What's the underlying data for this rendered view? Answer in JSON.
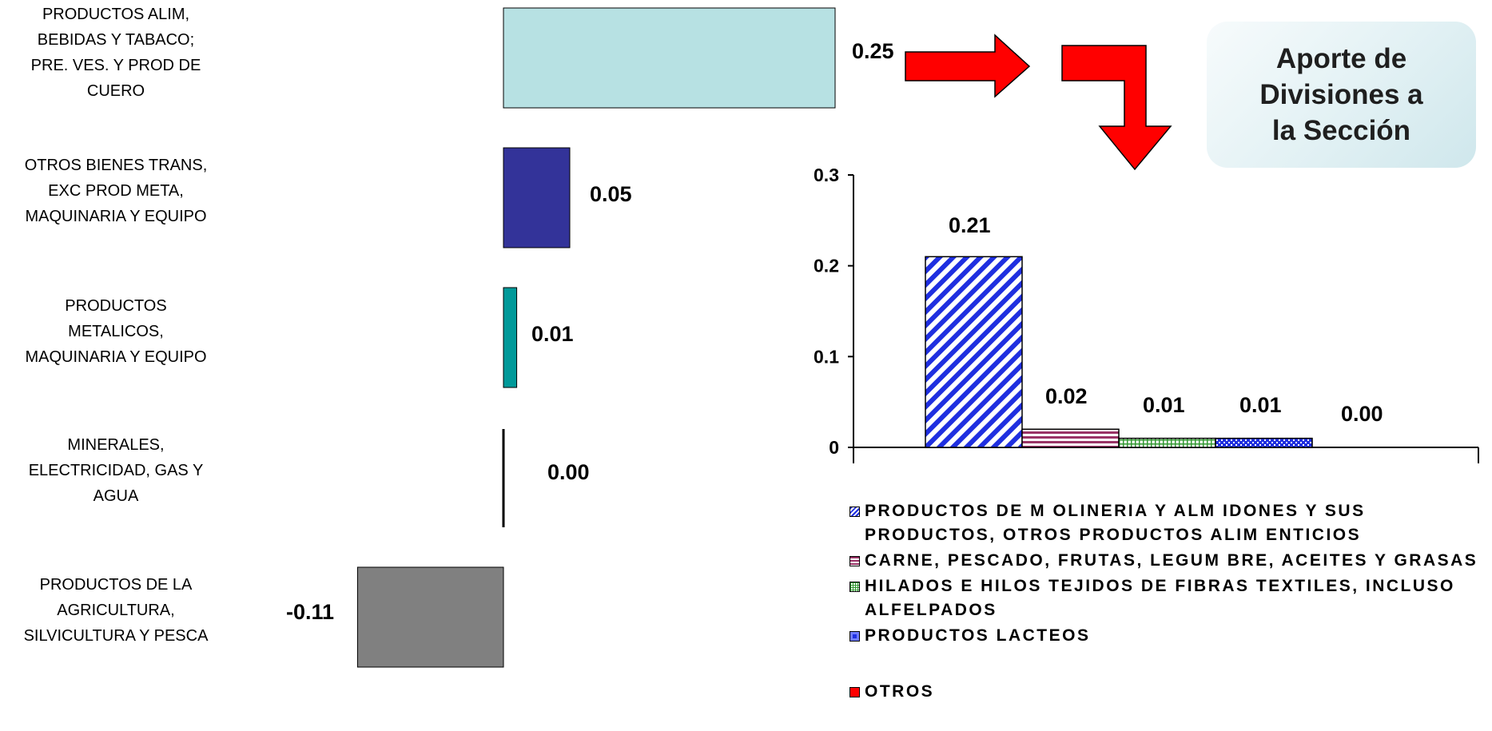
{
  "chart_data": [
    {
      "type": "bar",
      "orientation": "horizontal",
      "categories": [
        "PRODUCTOS  ALIM,\nBEBIDAS Y TABACO;\nPRE. VES. Y PROD DE\nCUERO",
        "OTROS BIENES TRANS,\nEXC PROD META,\nMAQUINARIA Y EQUIPO",
        "PRODUCTOS\nMETALICOS,\nMAQUINARIA Y EQUIPO",
        "MINERALES,\nELECTRICIDAD, GAS Y\nAGUA",
        "PRODUCTOS DE LA\nAGRICULTURA,\nSILVICULTURA Y PESCA"
      ],
      "values": [
        0.25,
        0.05,
        0.01,
        0.0,
        -0.11
      ],
      "value_labels": [
        "0.25",
        "0.05",
        "0.01",
        "0.00",
        "-0.11"
      ],
      "colors": [
        "#b7e1e3",
        "#333399",
        "#009999",
        "#000000",
        "#808080"
      ],
      "axis_visible": false,
      "grid": false
    },
    {
      "type": "bar",
      "series": [
        {
          "name": "PRODUCTOS DE M OLINERIA Y ALM IDONES Y SUS PRODUCTOS, OTROS PRODUCTOS ALIM ENTICIOS",
          "value": 0.21,
          "label": "0.21",
          "color": "#1f2fe0",
          "pattern": "diagonal"
        },
        {
          "name": "CARNE, PESCADO, FRUTAS, LEGUM BRE, ACEITES Y GRASAS",
          "value": 0.02,
          "label": "0.02",
          "color": "#993366",
          "pattern": "horizontal"
        },
        {
          "name": "HILADOS E HILOS TEJIDOS DE FIBRAS TEXTILES, INCLUSO ALFELPADOS",
          "value": 0.01,
          "label": "0.01",
          "color": "#339933",
          "pattern": "grid"
        },
        {
          "name": "PRODUCTOS LACTEOS",
          "value": 0.01,
          "label": "0.01",
          "color": "#1f2fe0",
          "pattern": "dots"
        },
        {
          "name": "OTROS",
          "value": 0.0,
          "label": "0.00",
          "color": "#ff0000",
          "pattern": "solid"
        }
      ],
      "yticks": [
        "0.3",
        "0.2",
        "0.1",
        "0"
      ],
      "ylim": [
        0,
        0.3
      ],
      "legend_position": "bottom",
      "grid": false
    }
  ],
  "callout": {
    "text": "Aporte de\nDivisiones a\nla Sección"
  },
  "arrows": {
    "color": "#ff0000",
    "outline": "#000000"
  }
}
